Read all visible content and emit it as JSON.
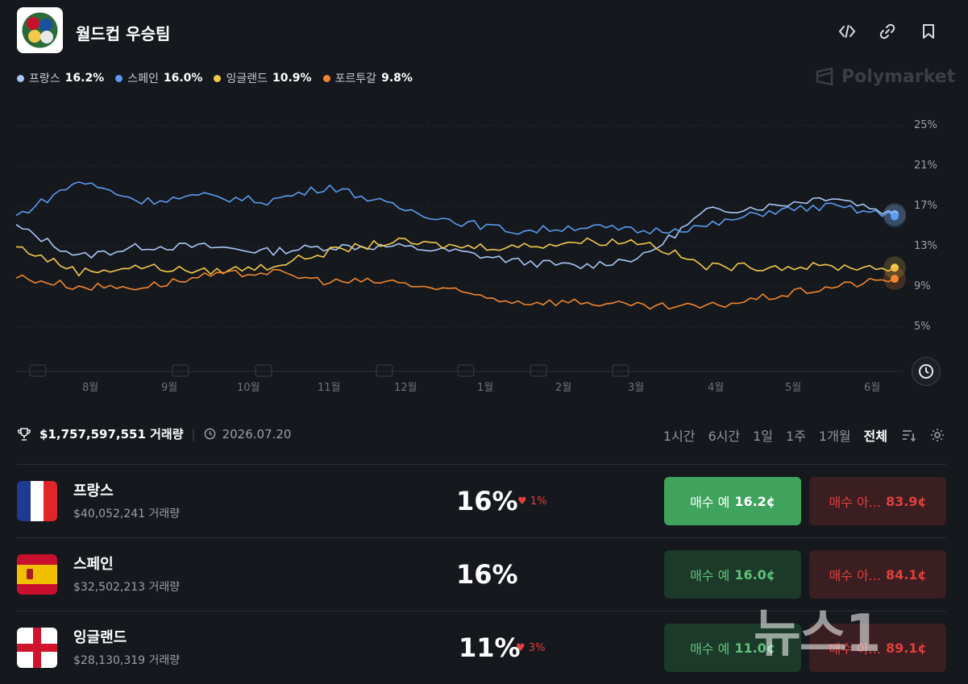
{
  "header": {
    "title": "월드컵 우승팀"
  },
  "legend": [
    {
      "name": "프랑스",
      "pct": "16.2%",
      "color": "#a9c7f5"
    },
    {
      "name": "스페인",
      "pct": "16.0%",
      "color": "#5b9cf0"
    },
    {
      "name": "잉글랜드",
      "pct": "10.9%",
      "color": "#f2c94c"
    },
    {
      "name": "포르투갈",
      "pct": "9.8%",
      "color": "#f0862e"
    }
  ],
  "brand": "Polymarket",
  "chart_data": {
    "type": "line",
    "y_ticks": [
      "25%",
      "21%",
      "17%",
      "13%",
      "9%",
      "5%"
    ],
    "x_ticks": [
      "8월",
      "9월",
      "10월",
      "11월",
      "12월",
      "1월",
      "2월",
      "3월",
      "4월",
      "5월",
      "6월"
    ],
    "series": [
      {
        "name": "프랑스",
        "color": "#a9c7f5",
        "values": [
          15,
          12,
          13,
          13,
          12.5,
          13,
          13,
          12.5,
          11.5,
          11.0,
          12,
          16.5,
          17,
          18,
          16.2
        ]
      },
      {
        "name": "스페인",
        "color": "#5b9cf0",
        "values": [
          16,
          19.5,
          17.5,
          18,
          17.5,
          19,
          17,
          15.5,
          14.5,
          15,
          14.5,
          15,
          16.5,
          17,
          16.0
        ]
      },
      {
        "name": "잉글랜드",
        "color": "#f2c94c",
        "values": [
          13,
          10.5,
          11,
          10.5,
          11,
          12.5,
          13.5,
          13,
          13,
          13.5,
          13.5,
          11,
          11,
          11,
          10.9
        ]
      },
      {
        "name": "포르투갈",
        "color": "#f0862e",
        "values": [
          10,
          9,
          9,
          10,
          10.5,
          9.5,
          9.5,
          8.5,
          7.5,
          7.5,
          7,
          7,
          8,
          9,
          9.8
        ]
      }
    ]
  },
  "stats": {
    "volume": "$1,757,597,551 거래량",
    "date": "2026.07.20"
  },
  "ranges": [
    "1시간",
    "6시간",
    "1일",
    "1주",
    "1개월",
    "전체"
  ],
  "active_range": "전체",
  "teams": [
    {
      "name": "프랑스",
      "volume": "$40,052,241 거래량",
      "pct": "16%",
      "change": "1%",
      "yes_label": "매수 예",
      "yes_price": "16.2¢",
      "no_label": "매수 아...",
      "no_price": "83.9¢",
      "flag": "france"
    },
    {
      "name": "스페인",
      "volume": "$32,502,213 거래량",
      "pct": "16%",
      "change": "",
      "yes_label": "매수 예",
      "yes_price": "16.0¢",
      "no_label": "매수 아...",
      "no_price": "84.1¢",
      "flag": "spain"
    },
    {
      "name": "잉글랜드",
      "volume": "$28,130,319 거래량",
      "pct": "11%",
      "change": "3%",
      "yes_label": "매수 예",
      "yes_price": "11.0¢",
      "no_label": "매수 아...",
      "no_price": "89.1¢",
      "flag": "england"
    }
  ],
  "watermark": "뉴스1"
}
